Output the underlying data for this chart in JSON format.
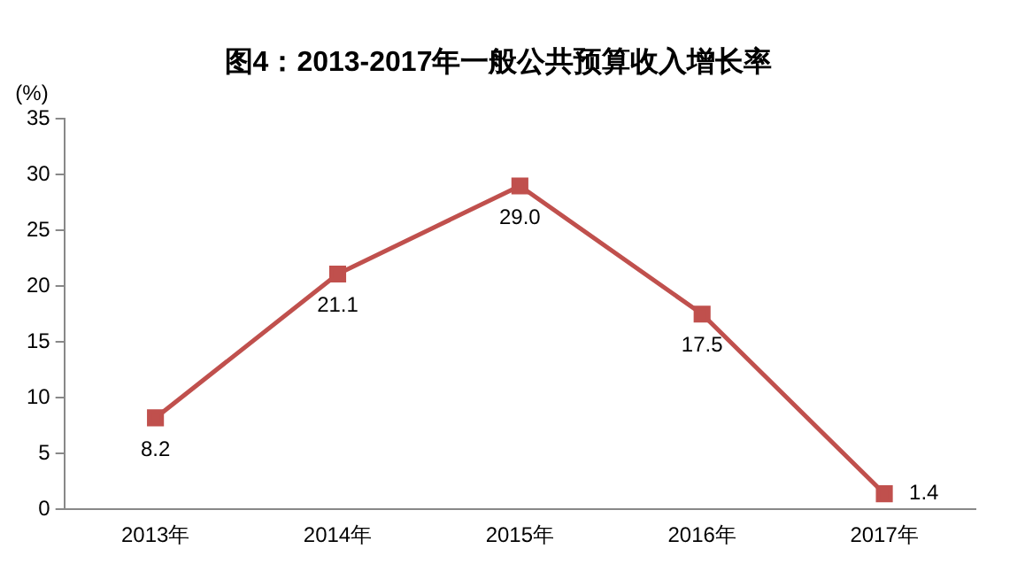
{
  "chart_data": {
    "type": "line",
    "title": "图4：2013-2017年一般公共预算收入增长率",
    "ylabel": "(%)",
    "categories": [
      "2013年",
      "2014年",
      "2015年",
      "2016年",
      "2017年"
    ],
    "series": [
      {
        "color": "#c0504d",
        "values": [
          8.2,
          21.1,
          29.0,
          17.5,
          1.4
        ],
        "value_labels": [
          "8.2",
          "21.1",
          "29.0",
          "17.5",
          "1.4"
        ]
      }
    ],
    "ylim": [
      0,
      35
    ],
    "yticks": [
      0,
      5,
      10,
      15,
      20,
      25,
      30,
      35
    ],
    "grid": false,
    "legend": false,
    "marker": "square",
    "line_style": "solid"
  }
}
